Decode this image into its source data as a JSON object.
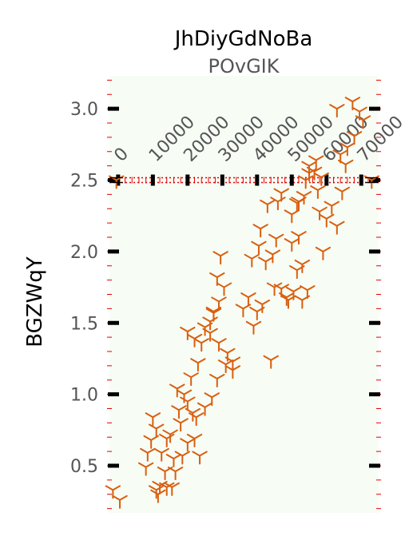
{
  "chart_data": {
    "type": "scatter",
    "title": "JhDiyGdNoBa",
    "subtitle": "POvGIK",
    "xlabel": "",
    "ylabel": "BGZWqY",
    "xlim": [
      -2500,
      75000
    ],
    "ylim": [
      0.17,
      3.23
    ],
    "x_ticks": [
      0,
      10000,
      20000,
      30000,
      40000,
      50000,
      60000,
      70000
    ],
    "x_tick_labels": [
      "0",
      "10000",
      "20000",
      "30000",
      "40000",
      "50000",
      "60000",
      "70000"
    ],
    "x_axis_position": "horizontal axis at y = 2.5, labels rotated 45°",
    "y_ticks": [
      0.5,
      1.0,
      1.5,
      2.0,
      2.5,
      3.0
    ],
    "y_tick_labels": [
      "0.5",
      "1.0",
      "1.5",
      "2.0",
      "2.5",
      "3.0"
    ],
    "grid": false,
    "marker": "tri-down",
    "colors": {
      "marker": "#d95f0e",
      "background": "#f7fcf5",
      "axis_line": "#e60000",
      "tick": "#000000"
    },
    "series": [
      {
        "x": [
          -1500,
          500,
          8000,
          8500,
          9500,
          11000,
          14000,
          12500,
          11000,
          15500,
          13500,
          16000,
          15000,
          18000,
          17500,
          19000,
          20000,
          21500,
          22500,
          20000,
          18500,
          16500,
          14000,
          11500,
          12000,
          10000,
          17000,
          21000,
          23000,
          20000,
          22000,
          24000,
          25000,
          26500,
          27500,
          29000,
          28500,
          30500,
          29500,
          27500,
          26500,
          29000,
          31500,
          33000,
          31000,
          28500,
          27000,
          25000,
          22000,
          23500,
          33000,
          36000,
          37500,
          39000,
          38500,
          40500,
          41000,
          42500,
          44500,
          43000,
          41500,
          40000,
          45500,
          47000,
          48500,
          49000,
          50500,
          51500,
          53000,
          52000,
          50000,
          47000,
          46000,
          45000,
          44000,
          50000,
          51500,
          54000,
          56500,
          58500,
          57500,
          55000,
          53500,
          52000,
          58000,
          60000,
          61500,
          59000,
          63000,
          64500,
          65500,
          64000,
          66000,
          68000,
          69500,
          67500,
          63000,
          70500,
          57000,
          55000,
          53000,
          54500
        ],
        "y": [
          0.33,
          0.26,
          0.49,
          0.59,
          0.68,
          0.76,
          0.69,
          0.59,
          0.33,
          0.35,
          0.46,
          0.55,
          0.72,
          0.8,
          0.89,
          1.0,
          0.95,
          0.87,
          0.84,
          0.66,
          0.57,
          0.46,
          0.35,
          0.3,
          0.36,
          0.84,
          1.04,
          1.12,
          1.22,
          1.44,
          1.39,
          1.36,
          1.47,
          1.51,
          1.57,
          1.65,
          1.82,
          1.75,
          1.97,
          1.58,
          1.43,
          1.36,
          1.29,
          1.17,
          1.21,
          1.11,
          0.98,
          0.91,
          0.69,
          0.57,
          1.23,
          1.6,
          1.68,
          1.48,
          1.95,
          2.04,
          2.16,
          1.93,
          1.98,
          2.33,
          1.63,
          1.58,
          2.09,
          1.74,
          1.68,
          1.66,
          1.72,
          1.87,
          1.91,
          2.11,
          2.26,
          2.41,
          2.35,
          1.75,
          1.24,
          2.06,
          2.34,
          2.5,
          2.56,
          2.52,
          2.43,
          2.6,
          2.39,
          2.35,
          2.28,
          2.23,
          2.32,
          2.0,
          2.18,
          2.42,
          2.61,
          2.68,
          2.73,
          2.81,
          2.98,
          3.05,
          3.0,
          2.92,
          2.64,
          2.55,
          1.66,
          1.73
        ],
        "highlight_points": [
          {
            "x": -500,
            "y": 2.5
          },
          {
            "x": 73000,
            "y": 2.5
          }
        ]
      }
    ]
  }
}
